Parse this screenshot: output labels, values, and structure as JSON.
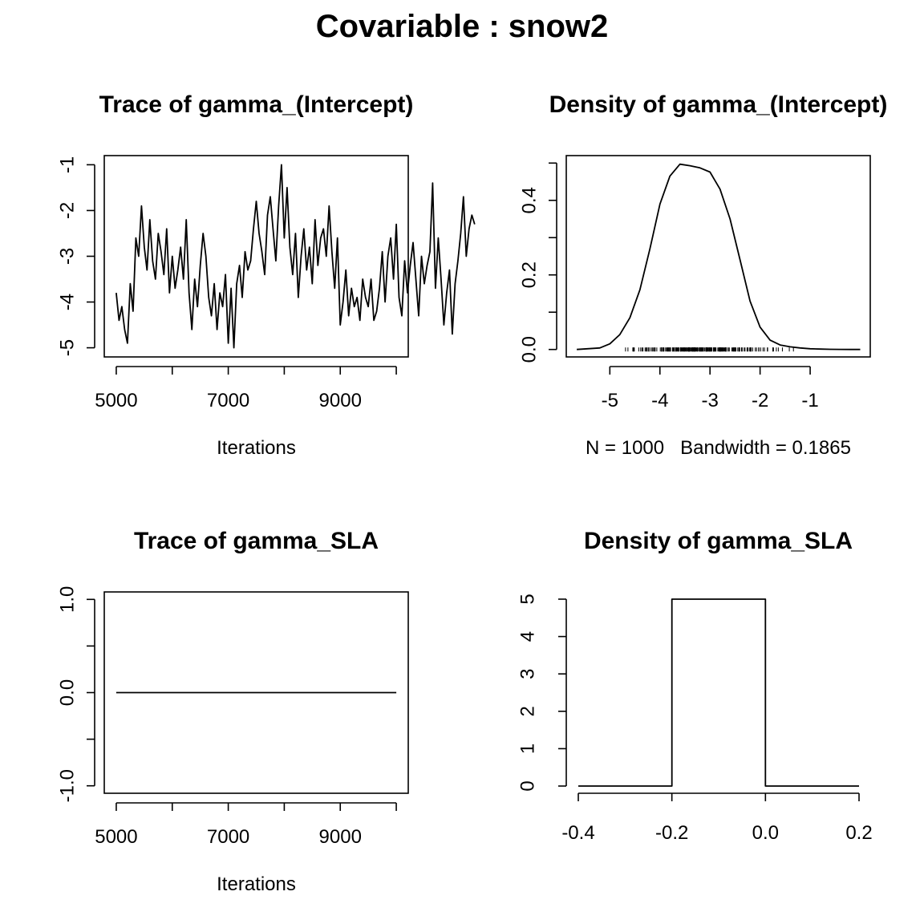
{
  "figure": {
    "title": "Covariable : snow2"
  },
  "chart_data": [
    {
      "type": "line",
      "title": "Trace of gamma_(Intercept)",
      "xlabel": "Iterations",
      "ylabel": "",
      "xlim": [
        4786,
        10214
      ],
      "ylim": [
        -5.2,
        -0.8
      ],
      "xticks": [
        5000,
        6000,
        7000,
        8000,
        9000,
        10000
      ],
      "xtick_labels": [
        "5000",
        "",
        "7000",
        "",
        "9000",
        ""
      ],
      "yticks": [
        -5,
        -4,
        -3,
        -2,
        -1
      ],
      "ytick_labels": [
        "-5",
        "-4",
        "-3",
        "-2",
        "-1"
      ],
      "series": [
        {
          "x_start": 5000,
          "x_step": 50,
          "values": [
            -3.8,
            -4.4,
            -4.1,
            -4.6,
            -4.9,
            -3.6,
            -4.2,
            -2.6,
            -3.0,
            -1.9,
            -2.8,
            -3.3,
            -2.2,
            -3.1,
            -3.5,
            -2.5,
            -2.9,
            -3.4,
            -2.4,
            -3.8,
            -3.0,
            -3.7,
            -3.3,
            -2.8,
            -3.5,
            -2.2,
            -3.8,
            -4.6,
            -3.5,
            -4.1,
            -3.2,
            -2.5,
            -3.0,
            -3.9,
            -4.3,
            -3.6,
            -4.6,
            -3.8,
            -4.1,
            -3.4,
            -4.9,
            -3.7,
            -5.0,
            -3.6,
            -3.2,
            -3.9,
            -2.9,
            -3.3,
            -3.1,
            -2.4,
            -1.8,
            -2.5,
            -2.9,
            -3.4,
            -2.1,
            -1.7,
            -2.4,
            -3.1,
            -1.9,
            -1.0,
            -2.6,
            -1.5,
            -2.8,
            -3.4,
            -2.5,
            -3.9,
            -3.0,
            -2.4,
            -3.3,
            -2.8,
            -3.6,
            -2.2,
            -3.2,
            -2.6,
            -2.4,
            -3.0,
            -1.9,
            -2.9,
            -3.7,
            -2.6,
            -4.5,
            -4.0,
            -3.3,
            -4.3,
            -3.7,
            -4.1,
            -3.9,
            -4.4,
            -3.5,
            -3.9,
            -4.1,
            -3.5,
            -4.4,
            -4.2,
            -3.7,
            -2.9,
            -4.0,
            -3.0,
            -2.6,
            -3.5,
            -2.3,
            -3.9,
            -4.3,
            -3.1,
            -3.8,
            -3.2,
            -2.7,
            -3.5,
            -4.3,
            -3.0,
            -3.6,
            -3.2,
            -2.9,
            -1.4,
            -3.7,
            -2.6,
            -3.5,
            -4.5,
            -3.8,
            -3.3,
            -4.7,
            -3.6,
            -3.1,
            -2.5,
            -1.7,
            -3.0,
            -2.4,
            -2.1,
            -2.3
          ]
        }
      ]
    },
    {
      "type": "line",
      "title": "Density of gamma_(Intercept)",
      "xlabel": "N = 1000   Bandwidth = 0.1865",
      "ylabel": "",
      "xlim": [
        -5.87,
        0.2
      ],
      "ylim": [
        -0.02,
        0.52
      ],
      "xticks": [
        -5,
        -4,
        -3,
        -2,
        -1
      ],
      "xtick_labels": [
        "-5",
        "-4",
        "-3",
        "-2",
        "-1"
      ],
      "yticks": [
        0,
        0.1,
        0.2,
        0.3,
        0.4,
        0.5
      ],
      "ytick_labels": [
        "0.0",
        "",
        "0.2",
        "",
        "0.4",
        ""
      ],
      "series": [
        {
          "x": [
            -5.66,
            -5.2,
            -5.0,
            -4.8,
            -4.6,
            -4.4,
            -4.2,
            -4.0,
            -3.8,
            -3.6,
            -3.4,
            -3.2,
            -3.0,
            -2.8,
            -2.6,
            -2.4,
            -2.2,
            -2.0,
            -1.8,
            -1.6,
            -1.4,
            -1.2,
            -1.0,
            -0.8,
            -0.6,
            -0.4,
            -0.2,
            0.0
          ],
          "values": [
            0.0,
            0.004,
            0.015,
            0.04,
            0.085,
            0.16,
            0.27,
            0.39,
            0.465,
            0.497,
            0.493,
            0.487,
            0.476,
            0.43,
            0.35,
            0.24,
            0.13,
            0.06,
            0.025,
            0.012,
            0.007,
            0.004,
            0.002,
            0.001,
            0.0005,
            0.0002,
            0.0,
            0.0
          ]
        }
      ],
      "rug_range": [
        -5.1,
        -1.0
      ]
    },
    {
      "type": "line",
      "title": "Trace of gamma_SLA",
      "xlabel": "Iterations",
      "ylabel": "",
      "xlim": [
        4786,
        10214
      ],
      "ylim": [
        -1.08,
        1.08
      ],
      "xticks": [
        5000,
        6000,
        7000,
        8000,
        9000,
        10000
      ],
      "xtick_labels": [
        "5000",
        "",
        "7000",
        "",
        "9000",
        ""
      ],
      "yticks": [
        -1.0,
        -0.5,
        0.0,
        0.5,
        1.0
      ],
      "ytick_labels": [
        "-1.0",
        "",
        "0.0",
        "",
        "1.0"
      ],
      "series": [
        {
          "x": [
            5000,
            10000
          ],
          "values": [
            0.0,
            0.0
          ]
        }
      ]
    },
    {
      "type": "bar",
      "title": "Density of gamma_SLA",
      "xlabel": "",
      "ylabel": "",
      "xlim": [
        -0.4,
        0.2
      ],
      "ylim": [
        0,
        5
      ],
      "xticks": [
        -0.4,
        -0.2,
        0.0,
        0.2
      ],
      "xtick_labels": [
        "-0.4",
        "-0.2",
        "0.0",
        "0.2"
      ],
      "yticks": [
        0,
        1,
        2,
        3,
        4,
        5
      ],
      "ytick_labels": [
        "0",
        "1",
        "2",
        "3",
        "4",
        "5"
      ],
      "bins": [
        {
          "from": -0.4,
          "to": -0.2,
          "value": 0
        },
        {
          "from": -0.2,
          "to": 0.0,
          "value": 5
        },
        {
          "from": 0.0,
          "to": 0.2,
          "value": 0
        }
      ]
    }
  ]
}
